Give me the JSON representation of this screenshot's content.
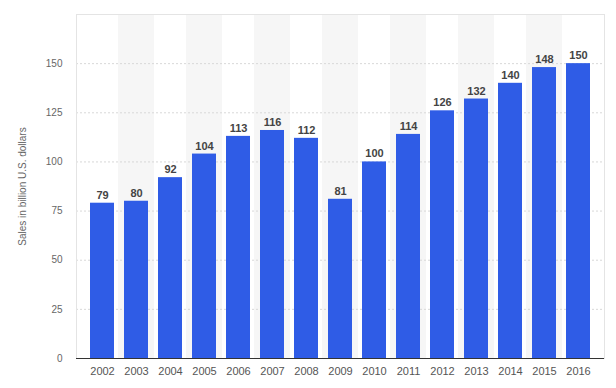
{
  "chart_data": {
    "type": "bar",
    "y_label": "Sales in billion U.S. dollars",
    "categories": [
      "2002",
      "2003",
      "2004",
      "2005",
      "2006",
      "2007",
      "2008",
      "2009",
      "2010",
      "2011",
      "2012",
      "2013",
      "2014",
      "2015",
      "2016"
    ],
    "values": [
      79,
      80,
      92,
      104,
      113,
      116,
      112,
      81,
      100,
      114,
      126,
      132,
      140,
      148,
      150
    ],
    "color": "#2f5ce6",
    "ylim": [
      0,
      175
    ],
    "yticks": [
      0,
      25,
      50,
      75,
      100,
      125,
      150
    ],
    "grid": true,
    "data_labels": true
  }
}
